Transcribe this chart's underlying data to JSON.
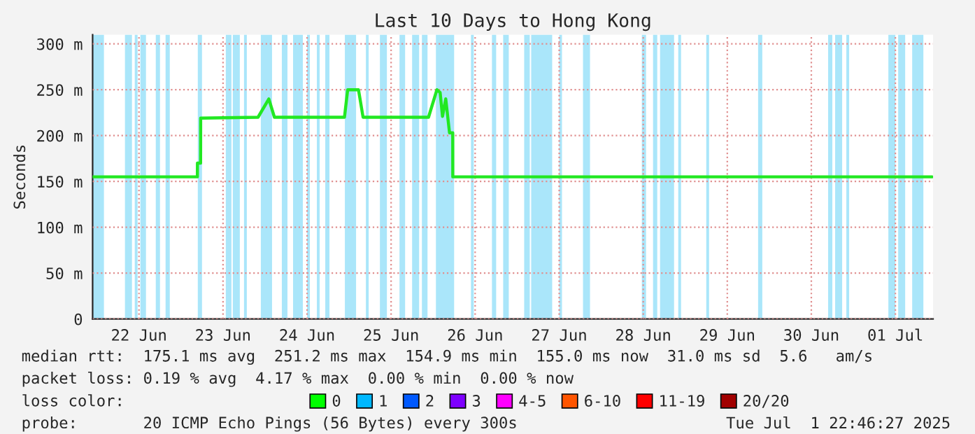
{
  "chart_data": {
    "type": "line",
    "title": "Last 10 Days to Hong Kong",
    "ylabel": "Seconds",
    "xlim": [
      "2025-06-21T22:46",
      "2025-07-01T22:46"
    ],
    "xticks": [
      {
        "value": "2025-06-22T12:00",
        "label": "22 Jun"
      },
      {
        "value": "2025-06-23T12:00",
        "label": "23 Jun"
      },
      {
        "value": "2025-06-24T12:00",
        "label": "24 Jun"
      },
      {
        "value": "2025-06-25T12:00",
        "label": "25 Jun"
      },
      {
        "value": "2025-06-26T12:00",
        "label": "26 Jun"
      },
      {
        "value": "2025-06-27T12:00",
        "label": "27 Jun"
      },
      {
        "value": "2025-06-28T12:00",
        "label": "28 Jun"
      },
      {
        "value": "2025-06-29T12:00",
        "label": "29 Jun"
      },
      {
        "value": "2025-06-30T12:00",
        "label": "30 Jun"
      },
      {
        "value": "2025-07-01T12:00",
        "label": "01 Jul"
      }
    ],
    "ylim": [
      0,
      310
    ],
    "yticks": [
      0,
      {
        "value": 50,
        "label": "50 m"
      },
      {
        "value": 100,
        "label": "100 m"
      },
      {
        "value": 150,
        "label": "150 m"
      },
      {
        "value": 200,
        "label": "200 m"
      },
      {
        "value": 250,
        "label": "250 m"
      },
      {
        "value": 300,
        "label": "300 m"
      }
    ],
    "grid": true,
    "legend": "bottom",
    "legend_title": "loss color:",
    "marker": "none",
    "line_style": "solid",
    "series": [
      {
        "color": "#22e822",
        "x": [
          "2025-06-21T22:46",
          "2025-06-23T04:41",
          "2025-06-23T04:42",
          "2025-06-23T05:36",
          "2025-06-23T05:37",
          "2025-06-23T22:00",
          "2025-06-24T01:05",
          "2025-06-24T02:41",
          "2025-06-24T22:41",
          "2025-06-24T23:36",
          "2025-06-25T02:41",
          "2025-06-25T04:00",
          "2025-06-25T22:41",
          "2025-06-26T01:05",
          "2025-06-26T02:00",
          "2025-06-26T02:41",
          "2025-06-26T03:36",
          "2025-06-26T04:41",
          "2025-06-26T05:36",
          "2025-06-26T05:37",
          "2025-07-01T22:30"
        ],
        "values": [
          155,
          155,
          170,
          170,
          219,
          220,
          240,
          220,
          220,
          250,
          250,
          220,
          220,
          250,
          247,
          221,
          240,
          203,
          203,
          155,
          155
        ]
      },
      {
        "name": "0",
        "color": "#00ff00"
      },
      {
        "name": "1",
        "color": "#00b8ff"
      },
      {
        "name": "2",
        "color": "#0059ff"
      },
      {
        "name": "3",
        "color": "#7e00ff"
      },
      {
        "name": "4-5",
        "color": "#ff00ff"
      },
      {
        "name": "6-10",
        "color": "#ff5500"
      },
      {
        "name": "11-19",
        "color": "#ff0000"
      },
      {
        "name": "20/20",
        "color": "#a10000"
      }
    ],
    "bands": [
      {
        "axis": "x",
        "from": "2025-06-21T22:46",
        "to": "2025-06-22T02:00",
        "color": "#aae6fa"
      },
      {
        "axis": "x",
        "from": "2025-06-22T08:00",
        "to": "2025-06-22T10:00",
        "color": "#aae6fa"
      },
      {
        "axis": "x",
        "from": "2025-06-22T10:48",
        "to": "2025-06-22T11:36",
        "color": "#aae6fa"
      },
      {
        "axis": "x",
        "from": "2025-06-22T12:24",
        "to": "2025-06-22T14:00",
        "color": "#aae6fa"
      },
      {
        "axis": "x",
        "from": "2025-06-22T16:48",
        "to": "2025-06-22T18:00",
        "color": "#aae6fa"
      },
      {
        "axis": "x",
        "from": "2025-06-22T19:36",
        "to": "2025-06-22T20:48",
        "color": "#aae6fa"
      },
      {
        "axis": "x",
        "from": "2025-06-23T04:48",
        "to": "2025-06-23T06:00",
        "color": "#aae6fa"
      },
      {
        "axis": "x",
        "from": "2025-06-23T12:48",
        "to": "2025-06-23T14:24",
        "color": "#aae6fa"
      },
      {
        "axis": "x",
        "from": "2025-06-23T14:48",
        "to": "2025-06-23T16:48",
        "color": "#aae6fa"
      },
      {
        "axis": "x",
        "from": "2025-06-23T18:00",
        "to": "2025-06-23T18:48",
        "color": "#aae6fa"
      },
      {
        "axis": "x",
        "from": "2025-06-23T22:48",
        "to": "2025-06-24T02:00",
        "color": "#aae6fa"
      },
      {
        "axis": "x",
        "from": "2025-06-24T04:48",
        "to": "2025-06-24T06:24",
        "color": "#aae6fa"
      },
      {
        "axis": "x",
        "from": "2025-06-24T08:00",
        "to": "2025-06-24T10:48",
        "color": "#aae6fa"
      },
      {
        "axis": "x",
        "from": "2025-06-24T12:00",
        "to": "2025-06-24T12:48",
        "color": "#aae6fa"
      },
      {
        "axis": "x",
        "from": "2025-06-24T14:48",
        "to": "2025-06-24T15:36",
        "color": "#aae6fa"
      },
      {
        "axis": "x",
        "from": "2025-06-24T17:12",
        "to": "2025-06-24T18:24",
        "color": "#aae6fa"
      },
      {
        "axis": "x",
        "from": "2025-06-24T22:48",
        "to": "2025-06-25T02:00",
        "color": "#aae6fa"
      },
      {
        "axis": "x",
        "from": "2025-06-25T04:48",
        "to": "2025-06-25T05:36",
        "color": "#aae6fa"
      },
      {
        "axis": "x",
        "from": "2025-06-25T08:48",
        "to": "2025-06-25T10:48",
        "color": "#aae6fa"
      },
      {
        "axis": "x",
        "from": "2025-06-25T14:24",
        "to": "2025-06-25T16:00",
        "color": "#aae6fa"
      },
      {
        "axis": "x",
        "from": "2025-06-25T18:00",
        "to": "2025-06-25T20:00",
        "color": "#aae6fa"
      },
      {
        "axis": "x",
        "from": "2025-06-25T20:48",
        "to": "2025-06-25T22:24",
        "color": "#aae6fa"
      },
      {
        "axis": "x",
        "from": "2025-06-26T00:48",
        "to": "2025-06-26T06:00",
        "color": "#aae6fa"
      },
      {
        "axis": "x",
        "from": "2025-06-26T10:48",
        "to": "2025-06-26T11:36",
        "color": "#aae6fa"
      },
      {
        "axis": "x",
        "from": "2025-06-26T16:48",
        "to": "2025-06-26T18:00",
        "color": "#aae6fa"
      },
      {
        "axis": "x",
        "from": "2025-06-26T20:00",
        "to": "2025-06-26T21:36",
        "color": "#aae6fa"
      },
      {
        "axis": "x",
        "from": "2025-06-27T02:00",
        "to": "2025-06-27T03:36",
        "color": "#aae6fa"
      },
      {
        "axis": "x",
        "from": "2025-06-27T04:00",
        "to": "2025-06-27T10:00",
        "color": "#aae6fa"
      },
      {
        "axis": "x",
        "from": "2025-06-27T12:00",
        "to": "2025-06-27T12:48",
        "color": "#aae6fa"
      },
      {
        "axis": "x",
        "from": "2025-06-27T18:48",
        "to": "2025-06-27T20:48",
        "color": "#aae6fa"
      },
      {
        "axis": "x",
        "from": "2025-06-28T11:36",
        "to": "2025-06-28T12:48",
        "color": "#aae6fa"
      },
      {
        "axis": "x",
        "from": "2025-06-28T14:48",
        "to": "2025-06-28T16:00",
        "color": "#aae6fa"
      },
      {
        "axis": "x",
        "from": "2025-06-28T16:48",
        "to": "2025-06-28T20:48",
        "color": "#aae6fa"
      },
      {
        "axis": "x",
        "from": "2025-06-28T22:00",
        "to": "2025-06-28T22:48",
        "color": "#aae6fa"
      },
      {
        "axis": "x",
        "from": "2025-06-29T06:00",
        "to": "2025-06-29T06:48",
        "color": "#aae6fa"
      },
      {
        "axis": "x",
        "from": "2025-06-29T20:48",
        "to": "2025-06-29T22:00",
        "color": "#aae6fa"
      },
      {
        "axis": "x",
        "from": "2025-06-30T16:48",
        "to": "2025-06-30T18:00",
        "color": "#aae6fa"
      },
      {
        "axis": "x",
        "from": "2025-06-30T18:48",
        "to": "2025-06-30T20:48",
        "color": "#aae6fa"
      },
      {
        "axis": "x",
        "from": "2025-06-30T22:00",
        "to": "2025-06-30T22:48",
        "color": "#aae6fa"
      },
      {
        "axis": "x",
        "from": "2025-07-01T10:00",
        "to": "2025-07-01T12:00",
        "color": "#aae6fa"
      },
      {
        "axis": "x",
        "from": "2025-07-01T12:48",
        "to": "2025-07-01T14:48",
        "color": "#aae6fa"
      },
      {
        "axis": "x",
        "from": "2025-07-01T16:48",
        "to": "2025-07-01T20:00",
        "color": "#aae6fa"
      }
    ],
    "annotations": [
      "median rtt:  175.1 ms avg  251.2 ms max  154.9 ms min  155.0 ms now  31.0 ms sd  5.6   am/s",
      "packet loss: 0.19 % avg  4.17 % max  0.00 % min  0.00 % now",
      "probe:       20 ICMP Echo Pings (56 Bytes) every 300s",
      "Tue Jul  1 22:46:27 2025"
    ]
  }
}
